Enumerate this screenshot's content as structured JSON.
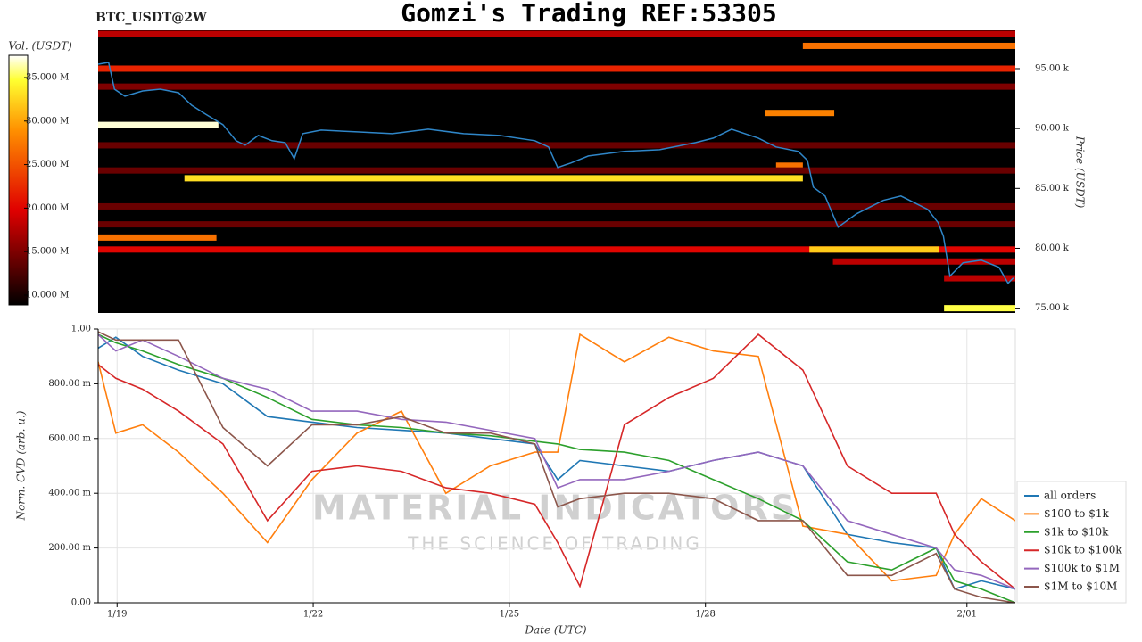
{
  "title": "Gomzi's Trading REF:53305",
  "chart_data": [
    {
      "type": "heatmap",
      "label": "BTC_USDT@2W",
      "ylabel": "Price (USDT)",
      "xlim": [
        18.71,
        32.74
      ],
      "ylim": [
        74600,
        98200
      ],
      "yticks": [
        {
          "value": 75000,
          "label": "75.00 k"
        },
        {
          "value": 80000,
          "label": "80.00 k"
        },
        {
          "value": 85000,
          "label": "85.00 k"
        },
        {
          "value": 90000,
          "label": "90.00 k"
        },
        {
          "value": 95000,
          "label": "95.00 k"
        }
      ],
      "colorbar": {
        "label": "Vol. (USDT)",
        "lim": [
          8870000,
          37560000
        ],
        "ticks": [
          {
            "value": 10000000,
            "label": "10.000 M"
          },
          {
            "value": 15000000,
            "label": "15.000 M"
          },
          {
            "value": 20000000,
            "label": "20.000 M"
          },
          {
            "value": 25000000,
            "label": "25.000 M"
          },
          {
            "value": 30000000,
            "label": "30.000 M"
          },
          {
            "value": 35000000,
            "label": "35.000 M"
          }
        ]
      },
      "bands": [
        {
          "price": 97900,
          "start": 18.71,
          "end": 32.74,
          "volume": 18000000
        },
        {
          "price": 96900,
          "start": 29.49,
          "end": 32.74,
          "volume": 27000000
        },
        {
          "price": 95000,
          "start": 18.71,
          "end": 32.74,
          "volume": 22000000
        },
        {
          "price": 93500,
          "start": 18.71,
          "end": 32.74,
          "volume": 15000000
        },
        {
          "price": 91300,
          "start": 28.91,
          "end": 29.97,
          "volume": 28000000
        },
        {
          "price": 90300,
          "start": 18.71,
          "end": 20.55,
          "volume": 37000000
        },
        {
          "price": 88600,
          "start": 18.71,
          "end": 32.74,
          "volume": 14000000
        },
        {
          "price": 86900,
          "start": 29.08,
          "end": 29.49,
          "volume": 27000000
        },
        {
          "price": 86500,
          "start": 18.71,
          "end": 32.74,
          "volume": 14000000
        },
        {
          "price": 85850,
          "start": 20.03,
          "end": 29.49,
          "volume": 33000000
        },
        {
          "price": 83500,
          "start": 18.71,
          "end": 32.74,
          "volume": 14000000
        },
        {
          "price": 82000,
          "start": 18.71,
          "end": 32.74,
          "volume": 14000000
        },
        {
          "price": 80900,
          "start": 18.71,
          "end": 20.52,
          "volume": 27000000
        },
        {
          "price": 79900,
          "start": 18.71,
          "end": 32.74,
          "volume": 20000000
        },
        {
          "price": 79900,
          "start": 29.59,
          "end": 31.57,
          "volume": 32000000
        },
        {
          "price": 78900,
          "start": 29.95,
          "end": 32.74,
          "volume": 18000000
        },
        {
          "price": 77500,
          "start": 31.65,
          "end": 32.74,
          "volume": 18000000
        },
        {
          "price": 75000,
          "start": 31.65,
          "end": 32.74,
          "volume": 35000000
        }
      ],
      "line": {
        "color": "#2f86c8",
        "x": [
          18.71,
          18.87,
          18.96,
          19.12,
          19.39,
          19.66,
          19.94,
          20.14,
          20.35,
          20.62,
          20.82,
          20.96,
          21.16,
          21.37,
          21.57,
          21.71,
          21.84,
          22.12,
          22.67,
          23.21,
          23.76,
          24.3,
          24.85,
          25.39,
          25.6,
          25.74,
          25.94,
          26.21,
          26.76,
          27.3,
          27.85,
          28.12,
          28.4,
          28.81,
          29.08,
          29.42,
          29.56,
          29.65,
          29.83,
          30.03,
          30.31,
          30.72,
          30.99,
          31.4,
          31.56,
          31.64,
          31.74,
          31.94,
          32.22,
          32.49,
          32.63,
          32.71
        ],
        "values": [
          95370,
          95520,
          93290,
          92700,
          93140,
          93290,
          92990,
          91950,
          91210,
          90320,
          88980,
          88610,
          89420,
          88980,
          88830,
          87490,
          89570,
          89870,
          89720,
          89570,
          89940,
          89570,
          89420,
          88980,
          88460,
          86750,
          87120,
          87710,
          88090,
          88230,
          88830,
          89200,
          89940,
          89200,
          88460,
          88090,
          87340,
          85110,
          84370,
          81770,
          82880,
          84000,
          84370,
          83250,
          82140,
          81020,
          77680,
          78790,
          79010,
          78420,
          77080,
          77530
        ]
      }
    },
    {
      "type": "line",
      "xlabel": "Date (UTC)",
      "ylabel": "Norm. CVD (arb. u.)",
      "watermark": [
        "MATERIAL INDICATORS",
        "THE SCIENCE OF TRADING"
      ],
      "xlim": [
        18.71,
        32.74
      ],
      "ylim": [
        0,
        1
      ],
      "xticks": [
        {
          "value": 19,
          "label": "1/19"
        },
        {
          "value": 22,
          "label": "1/22"
        },
        {
          "value": 25,
          "label": "1/25"
        },
        {
          "value": 28,
          "label": "1/28"
        },
        {
          "value": 32,
          "label": "2/01"
        }
      ],
      "yticks": [
        {
          "value": 0,
          "label": "0.00"
        },
        {
          "value": 0.2,
          "label": "200.00 m"
        },
        {
          "value": 0.4,
          "label": "400.00 m"
        },
        {
          "value": 0.6,
          "label": "600.00 m"
        },
        {
          "value": 0.8,
          "label": "800.00 m"
        },
        {
          "value": 1,
          "label": "1.00"
        }
      ],
      "grid": true,
      "legend": "right",
      "x": [
        18.71,
        18.98,
        19.39,
        19.94,
        20.62,
        21.3,
        21.98,
        22.67,
        23.35,
        24.03,
        24.71,
        25.39,
        25.74,
        26.08,
        26.76,
        27.44,
        28.12,
        28.81,
        29.49,
        30.17,
        30.85,
        31.53,
        31.81,
        32.22,
        32.74
      ],
      "series": [
        {
          "name": "all orders",
          "color": "#1f77b4",
          "values": [
            0.93,
            0.97,
            0.9,
            0.85,
            0.8,
            0.68,
            0.66,
            0.64,
            0.63,
            0.62,
            0.6,
            0.58,
            0.45,
            0.52,
            0.5,
            0.48,
            0.52,
            0.55,
            0.5,
            0.25,
            0.22,
            0.2,
            0.05,
            0.08,
            0.05
          ]
        },
        {
          "name": "$100 to $1k",
          "color": "#ff7f0e",
          "values": [
            0.88,
            0.62,
            0.65,
            0.55,
            0.4,
            0.22,
            0.45,
            0.62,
            0.7,
            0.4,
            0.5,
            0.55,
            0.55,
            0.98,
            0.88,
            0.97,
            0.92,
            0.9,
            0.28,
            0.25,
            0.08,
            0.1,
            0.25,
            0.38,
            0.3
          ]
        },
        {
          "name": "$1k to $10k",
          "color": "#2ca02c",
          "values": [
            0.98,
            0.95,
            0.92,
            0.87,
            0.82,
            0.75,
            0.67,
            0.65,
            0.64,
            0.62,
            0.61,
            0.59,
            0.58,
            0.56,
            0.55,
            0.52,
            0.45,
            0.38,
            0.3,
            0.15,
            0.12,
            0.2,
            0.08,
            0.05,
            0.0
          ]
        },
        {
          "name": "$10k to $100k",
          "color": "#d62728",
          "values": [
            0.87,
            0.82,
            0.78,
            0.7,
            0.58,
            0.3,
            0.48,
            0.5,
            0.48,
            0.42,
            0.4,
            0.36,
            0.22,
            0.06,
            0.65,
            0.75,
            0.82,
            0.98,
            0.85,
            0.5,
            0.4,
            0.4,
            0.25,
            0.15,
            0.05
          ]
        },
        {
          "name": "$100k to $1M",
          "color": "#9467bd",
          "values": [
            0.98,
            0.92,
            0.96,
            0.9,
            0.82,
            0.78,
            0.7,
            0.7,
            0.67,
            0.66,
            0.63,
            0.6,
            0.42,
            0.45,
            0.45,
            0.48,
            0.52,
            0.55,
            0.5,
            0.3,
            0.25,
            0.2,
            0.12,
            0.1,
            0.05
          ]
        },
        {
          "name": "$1M to $10M",
          "color": "#8c564b",
          "values": [
            0.99,
            0.96,
            0.96,
            0.96,
            0.64,
            0.5,
            0.65,
            0.65,
            0.68,
            0.62,
            0.62,
            0.58,
            0.35,
            0.38,
            0.4,
            0.4,
            0.38,
            0.3,
            0.3,
            0.1,
            0.1,
            0.18,
            0.05,
            0.02,
            0.0
          ]
        }
      ]
    }
  ]
}
